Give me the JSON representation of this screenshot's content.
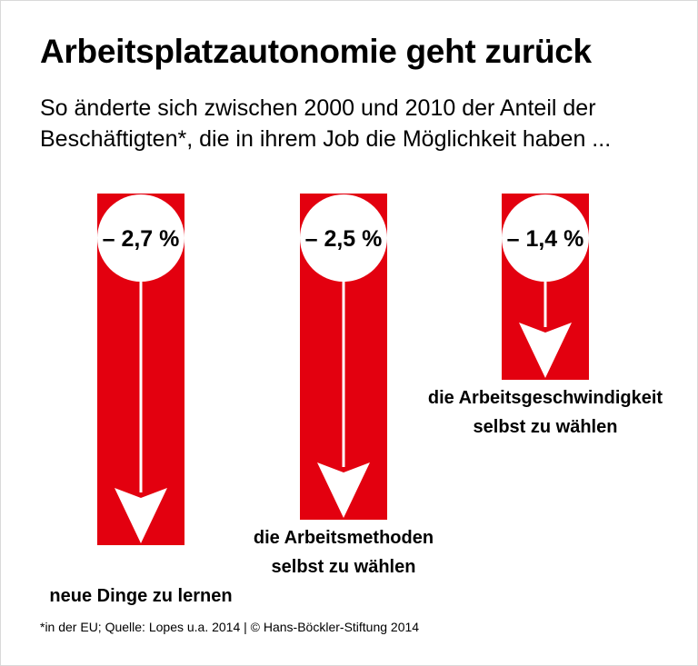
{
  "title": "Arbeitsplatzautonomie geht zurück",
  "subtitle": "So änderte sich zwischen 2000 und 2010 der Anteil der Beschäftigten*, die in ihrem Job die Möglichkeit haben ...",
  "footnote": "*in der EU; Quelle: Lopes u.a. 2014 | © Hans-Böckler-Stiftung 2014",
  "colors": {
    "bar": "#e3000f",
    "arrow": "#ffffff",
    "text": "#000000"
  },
  "chart_data": {
    "type": "bar",
    "categories": [
      "neue Dinge zu lernen",
      "die Arbeitsmethoden selbst zu wählen",
      "die Arbeitsgeschwindigkeit selbst zu wählen"
    ],
    "category_lines": [
      [
        "neue Dinge zu lernen"
      ],
      [
        "die Arbeitsmethoden",
        "selbst zu wählen"
      ],
      [
        "die Arbeitsgeschwindigkeit",
        "selbst zu wählen"
      ]
    ],
    "values": [
      -2.7,
      -2.5,
      -1.4
    ],
    "data_labels": [
      "– 2,7 %",
      "– 2,5 %",
      "– 1,4 %"
    ],
    "unit": "%"
  }
}
